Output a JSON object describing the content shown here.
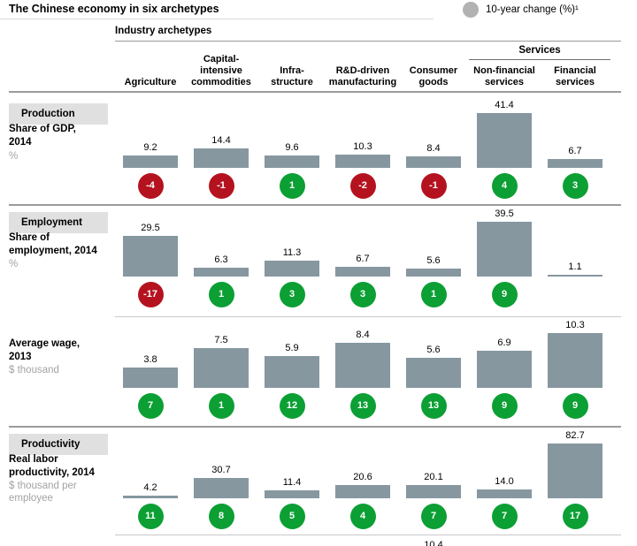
{
  "title": "The Chinese economy in six archetypes",
  "legend_label": "10-year change (%)¹",
  "group_header": "Industry archetypes",
  "services_header": "Services",
  "colors": {
    "bar": "#8697a0",
    "badge_positive": "#0c9f34",
    "badge_negative": "#b5121f",
    "chip_bg": "#e0e0e0",
    "legend_circle": "#b2b2b2",
    "muted_text": "#a3a3a3"
  },
  "columns": [
    {
      "name": "Agriculture",
      "header_lines": [
        "Agriculture"
      ]
    },
    {
      "name": "Capital-intensive commodities",
      "header_lines": [
        "Capital-",
        "intensive",
        "commodities"
      ]
    },
    {
      "name": "Infrastructure",
      "header_lines": [
        "Infra-",
        "structure"
      ]
    },
    {
      "name": "R&D-driven manufacturing",
      "header_lines": [
        "R&D-driven",
        "manufacturing"
      ]
    },
    {
      "name": "Consumer goods",
      "header_lines": [
        "Consumer",
        "goods"
      ]
    },
    {
      "name": "Non-financial services",
      "header_lines": [
        "Non-financial",
        "services"
      ]
    },
    {
      "name": "Financial services",
      "header_lines": [
        "Financial",
        "services"
      ]
    }
  ],
  "chart_data": {
    "type": "bar",
    "title": "The Chinese economy in six archetypes",
    "legend": "10-year change (%)¹",
    "categories": [
      "Agriculture",
      "Capital-intensive commodities",
      "Infrastructure",
      "R&D-driven manufacturing",
      "Consumer goods",
      "Non-financial services",
      "Financial services"
    ],
    "rows": [
      {
        "section": "Production",
        "label_lines": [
          "Share of GDP,",
          "2014"
        ],
        "unit_lines": [
          "%"
        ],
        "values": [
          9.2,
          14.4,
          9.6,
          10.3,
          8.4,
          41.4,
          6.7
        ],
        "value_labels": [
          "9.2",
          "14.4",
          "9.6",
          "10.3",
          "8.4",
          "41.4",
          "6.7"
        ],
        "changes": [
          -4,
          -1,
          1,
          -2,
          -1,
          4,
          3
        ]
      },
      {
        "section": "Employment",
        "label_lines": [
          "Share of",
          "employment, 2014"
        ],
        "unit_lines": [
          "%"
        ],
        "values": [
          29.5,
          6.3,
          11.3,
          6.7,
          5.6,
          39.5,
          1.1
        ],
        "value_labels": [
          "29.5",
          "6.3",
          "11.3",
          "6.7",
          "5.6",
          "39.5",
          "1.1"
        ],
        "changes": [
          -17,
          1,
          3,
          3,
          1,
          9,
          null
        ]
      },
      {
        "section": null,
        "label_lines": [
          "Average wage,",
          "2013"
        ],
        "unit_lines": [
          "$ thousand"
        ],
        "values": [
          3.8,
          7.5,
          5.9,
          8.4,
          5.6,
          6.9,
          10.3
        ],
        "value_labels": [
          "3.8",
          "7.5",
          "5.9",
          "8.4",
          "5.6",
          "6.9",
          "10.3"
        ],
        "changes": [
          7,
          1,
          12,
          13,
          13,
          9,
          9
        ]
      },
      {
        "section": "Productivity",
        "label_lines": [
          "Real labor",
          "productivity, 2014"
        ],
        "unit_lines": [
          "$ thousand per",
          "employee"
        ],
        "values": [
          4.2,
          30.7,
          11.4,
          20.6,
          20.1,
          14.0,
          82.7
        ],
        "value_labels": [
          "4.2",
          "30.7",
          "11.4",
          "20.6",
          "20.1",
          "14.0",
          "82.7"
        ],
        "changes": [
          11,
          8,
          5,
          4,
          7,
          7,
          17
        ]
      }
    ],
    "partial_next_row_value": "10.4"
  }
}
